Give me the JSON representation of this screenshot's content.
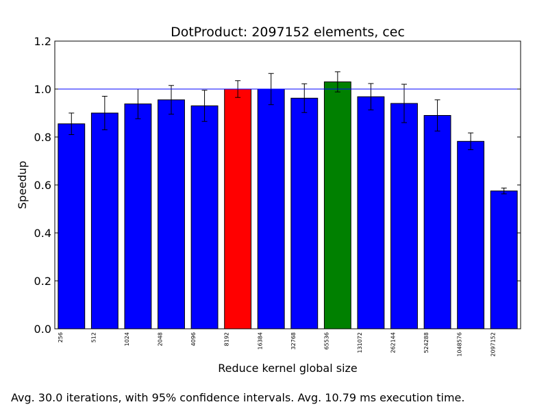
{
  "chart_data": {
    "type": "bar",
    "title": "DotProduct: 2097152 elements, cec",
    "xlabel": "Reduce kernel global size",
    "ylabel": "Speedup",
    "ylim": [
      0,
      1.2
    ],
    "yticks": [
      "0.0",
      "0.2",
      "0.4",
      "0.6",
      "0.8",
      "1.0",
      "1.2"
    ],
    "categories": [
      "256",
      "512",
      "1024",
      "2048",
      "4096",
      "8192",
      "16384",
      "32768",
      "65536",
      "131072",
      "262144",
      "524288",
      "1048576",
      "2097152"
    ],
    "values": [
      0.855,
      0.9,
      0.938,
      0.955,
      0.93,
      1.0,
      1.0,
      0.962,
      1.03,
      0.968,
      0.94,
      0.89,
      0.782,
      0.575
    ],
    "errors": [
      0.045,
      0.07,
      0.062,
      0.06,
      0.065,
      0.035,
      0.065,
      0.06,
      0.042,
      0.055,
      0.08,
      0.065,
      0.035,
      0.012
    ],
    "bar_colors": [
      "#0000ff",
      "#0000ff",
      "#0000ff",
      "#0000ff",
      "#0000ff",
      "#ff0000",
      "#0000ff",
      "#0000ff",
      "#008000",
      "#0000ff",
      "#0000ff",
      "#0000ff",
      "#0000ff",
      "#0000ff"
    ],
    "reference_line": 1.0,
    "reference_line_color": "#0000ff",
    "grid": false
  },
  "caption": "Avg. 30.0 iterations, with 95% confidence intervals. Avg. 10.79 ms execution time."
}
